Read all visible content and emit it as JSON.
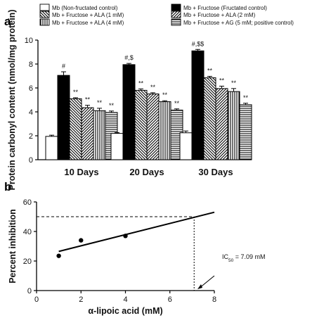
{
  "chart_data": [
    {
      "panel": "a",
      "type": "bar",
      "ylabel": "Protein carbonyl content (nmol/mg protein)",
      "ylim": [
        0,
        10
      ],
      "yticks": [
        0,
        2,
        4,
        6,
        8,
        10
      ],
      "categories": [
        "10 Days",
        "20 Days",
        "30 Days"
      ],
      "grid": false,
      "legend_position": "top",
      "series": [
        {
          "name": "Mb (Non-fructated control)",
          "pattern": "white",
          "values": [
            1.95,
            2.2,
            2.25
          ],
          "errors": [
            0.1,
            0.06,
            0.15
          ],
          "labels": [
            "",
            "",
            ""
          ]
        },
        {
          "name": "Mb + Fructose (Fructated control)",
          "pattern": "black",
          "values": [
            7.05,
            7.95,
            9.1
          ],
          "errors": [
            0.3,
            0.1,
            0.12
          ],
          "labels": [
            "#",
            "#,$",
            "#,$$"
          ]
        },
        {
          "name": "Mb + Fructose + ALA (1 mM)",
          "pattern": "diag-back",
          "values": [
            5.1,
            5.8,
            6.85
          ],
          "errors": [
            0.08,
            0.12,
            0.12
          ],
          "labels": [
            "**",
            "**",
            "**"
          ]
        },
        {
          "name": "Mb + Fructose + ALA (2 mM)",
          "pattern": "diag-fwd",
          "values": [
            4.35,
            5.5,
            5.95
          ],
          "errors": [
            0.2,
            0.1,
            0.2
          ],
          "labels": [
            "**",
            "**",
            "**"
          ]
        },
        {
          "name": "Mb + Fructose + ALA (4 mM)",
          "pattern": "vertical",
          "values": [
            4.1,
            4.85,
            5.7
          ],
          "errors": [
            0.2,
            0.08,
            0.25
          ],
          "labels": [
            "**",
            "**",
            "**"
          ]
        },
        {
          "name": "Mb + Fructose + AG (5 mM; positive control)",
          "pattern": "horizontal",
          "values": [
            3.95,
            4.15,
            4.6
          ],
          "errors": [
            0.12,
            0.1,
            0.12
          ],
          "labels": [
            "**",
            "**",
            "**"
          ]
        }
      ]
    },
    {
      "panel": "b",
      "type": "scatter",
      "xlabel": "α-lipoic acid (mM)",
      "ylabel": "Percent inhibition",
      "xlim": [
        0,
        8
      ],
      "ylim": [
        0,
        60
      ],
      "xticks": [
        0,
        2,
        4,
        6,
        8
      ],
      "yticks": [
        0,
        20,
        40,
        60
      ],
      "grid": false,
      "points": [
        {
          "x": 1,
          "y": 23.5
        },
        {
          "x": 2,
          "y": 34
        },
        {
          "x": 4,
          "y": 37
        }
      ],
      "fit_line": {
        "x": [
          1,
          8
        ],
        "y": [
          26.5,
          53
        ]
      },
      "reference_x": 7.09,
      "reference_y": 50,
      "annotation": {
        "text": "IC",
        "sub": "50",
        "rest": " = 7.09 mM"
      }
    }
  ]
}
